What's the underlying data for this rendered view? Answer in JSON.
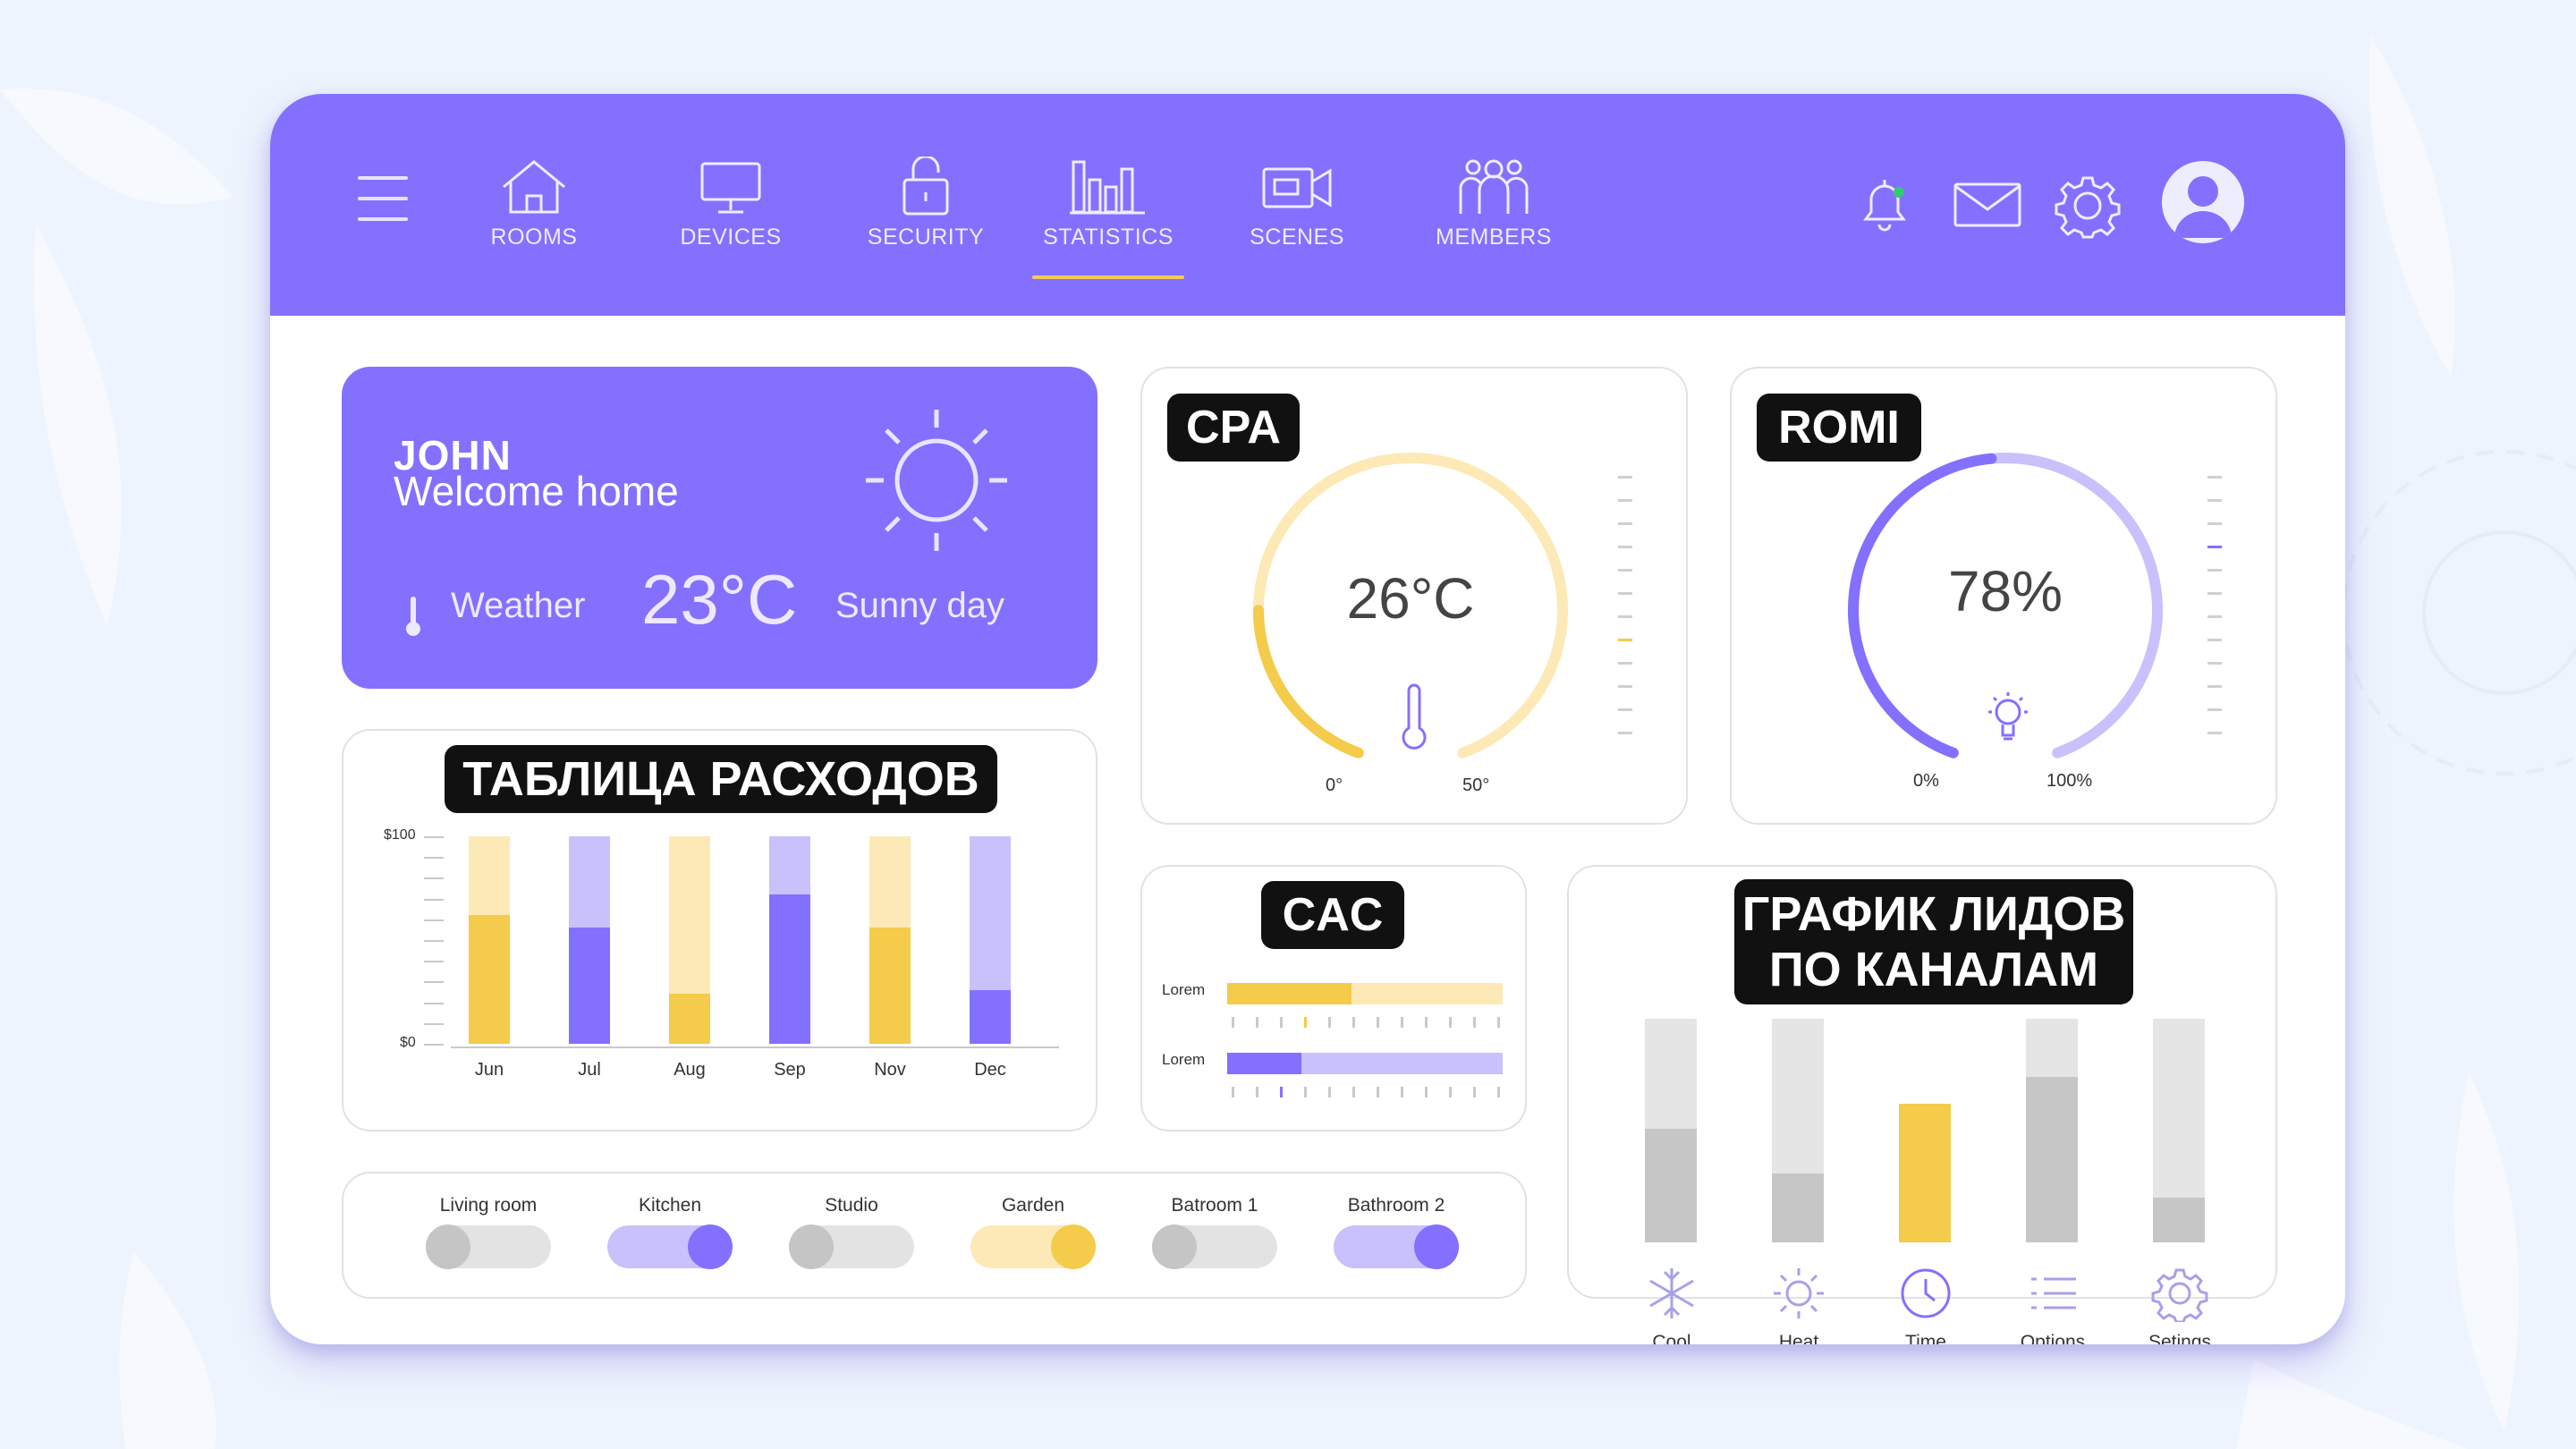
{
  "nav": {
    "items": [
      {
        "label": "ROOMS"
      },
      {
        "label": "DEVICES"
      },
      {
        "label": "SECURITY"
      },
      {
        "label": "STATISTICS"
      },
      {
        "label": "SCENES"
      },
      {
        "label": "MEMBERS"
      }
    ],
    "active": "STATISTICS"
  },
  "welcome": {
    "name": "JOHN",
    "subtitle": "Welcome home",
    "weather_label": "Weather",
    "temperature": "23°C",
    "condition": "Sunny day"
  },
  "cpa": {
    "tag": "CPA",
    "value": "26°C",
    "min_label": "0°",
    "max_label": "50°",
    "level": 0.52
  },
  "romi": {
    "tag": "ROMI",
    "value": "78%",
    "min_label": "0%",
    "max_label": "100%",
    "level": 0.78
  },
  "expenses": {
    "tag": "ТАБЛИЦА РАСХОДОВ",
    "y_max_label": "$100",
    "y_min_label": "$0"
  },
  "cac": {
    "tag": "CAC",
    "bars": [
      {
        "label": "Lorem",
        "fill": 0.45
      },
      {
        "label": "Lorem",
        "fill": 0.27
      }
    ]
  },
  "leads": {
    "tag_line1": "ГРАФИК ЛИДОВ",
    "tag_line2": "ПО КАНАЛАМ"
  },
  "toggles": [
    {
      "label": "Living room",
      "on": false
    },
    {
      "label": "Kitchen",
      "on": true
    },
    {
      "label": "Studio",
      "on": false
    },
    {
      "label": "Garden",
      "on": true
    },
    {
      "label": "Batroom 1",
      "on": false
    },
    {
      "label": "Bathroom 2",
      "on": true
    }
  ],
  "controls": [
    {
      "label": "Cool",
      "icon": "snowflake-icon"
    },
    {
      "label": "Heat",
      "icon": "sun-icon"
    },
    {
      "label": "Time",
      "icon": "clock-icon"
    },
    {
      "label": "Options",
      "icon": "list-icon"
    },
    {
      "label": "Setings",
      "icon": "gear-icon"
    }
  ],
  "chart_data": [
    {
      "type": "bar",
      "title": "ТАБЛИЦА РАСХОДОВ",
      "categories": [
        "Jun",
        "Jul",
        "Aug",
        "Sep",
        "Nov",
        "Dec"
      ],
      "series": [
        {
          "values": [
            62,
            56,
            24,
            72,
            56,
            26
          ]
        },
        {
          "values": [
            38,
            44,
            76,
            28,
            44,
            74
          ]
        }
      ],
      "ylim": [
        0,
        100
      ],
      "yticks": [
        "$0",
        "$100"
      ],
      "stacked": true,
      "colors": [
        "#f4cb4a",
        "#8470ff"
      ]
    },
    {
      "type": "bar",
      "title": "ГРАФИК ЛИДОВ ПО КАНАЛАМ",
      "categories": [
        "Cool",
        "Heat",
        "Time",
        "Options",
        "Setings"
      ],
      "series": [
        {
          "values": [
            51,
            31,
            62,
            74,
            20
          ]
        },
        {
          "values": [
            100,
            100,
            62,
            100,
            100
          ]
        }
      ],
      "ylim": [
        0,
        100
      ]
    }
  ],
  "colors": {
    "accent": "#8470ff",
    "accent_light": "#c8c1fb",
    "yellow": "#f4cb4a",
    "yellow_light": "#fde9b5",
    "gray": "#c6c6c6",
    "gray_light": "#e5e5e5"
  }
}
